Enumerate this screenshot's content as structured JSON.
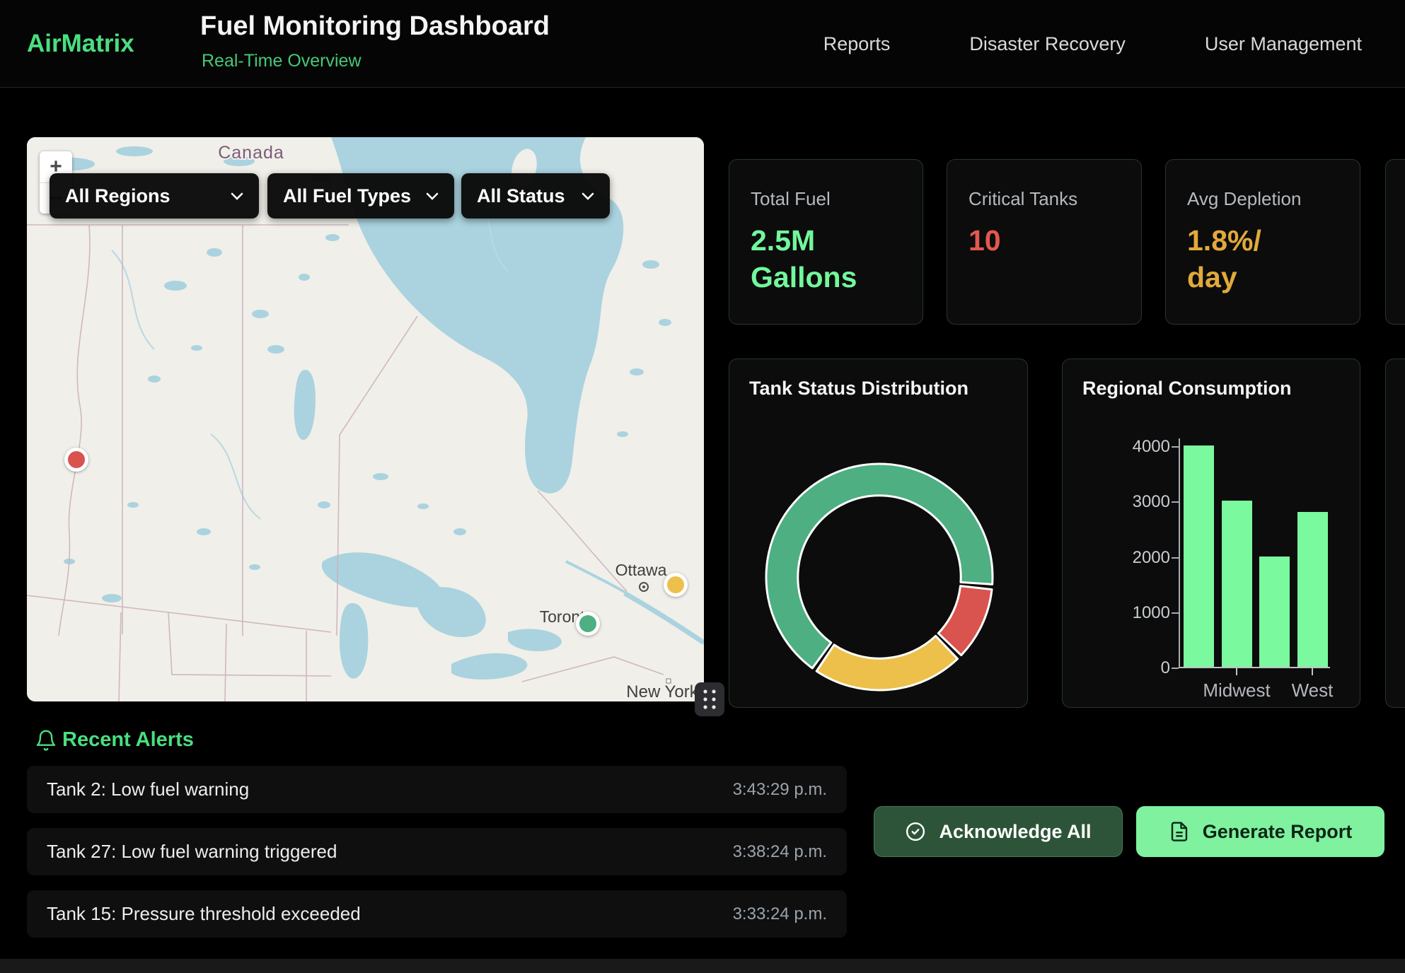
{
  "header": {
    "logo": "AirMatrix",
    "title": "Fuel Monitoring Dashboard",
    "subtitle": "Real-Time Overview",
    "nav": [
      {
        "label": "Reports"
      },
      {
        "label": "Disaster Recovery"
      },
      {
        "label": "User Management"
      }
    ]
  },
  "map": {
    "filters": [
      {
        "value": "All Regions"
      },
      {
        "value": "All Fuel Types"
      },
      {
        "value": "All Status"
      }
    ],
    "zoom_in": "+",
    "zoom_out": "−",
    "country_label": "Canada",
    "cities": [
      "Ottawa",
      "Toronto",
      "New York"
    ],
    "markers": [
      {
        "status": "critical",
        "color": "#d9534f",
        "x": 7.3,
        "y": 57.1
      },
      {
        "status": "warning",
        "color": "#ecc04a",
        "x": 95.8,
        "y": 79.3
      },
      {
        "status": "normal",
        "color": "#4daf82",
        "x": 82.9,
        "y": 86.2
      }
    ]
  },
  "stats": [
    {
      "label": "Total Fuel",
      "value_lines": [
        "2.5M",
        "Gallons"
      ],
      "color": "#72f79c"
    },
    {
      "label": "Critical Tanks",
      "value_lines": [
        "10"
      ],
      "color": "#e4574f"
    },
    {
      "label": "Avg Depletion",
      "value_lines": [
        "1.8%/",
        "day"
      ],
      "color": "#e2a93b"
    }
  ],
  "chart_data": [
    {
      "type": "donut",
      "title": "Tank Status Distribution",
      "segments": [
        {
          "name": "normal",
          "value": 60,
          "color": "#4daf82"
        },
        {
          "name": "critical",
          "value": 10,
          "color": "#d9544e"
        },
        {
          "name": "warning",
          "value": 20,
          "color": "#ecc04a"
        }
      ],
      "start_angle_deg": 215,
      "cutout_ratio": 0.72,
      "border_color": "#ffffff",
      "legend": "none"
    },
    {
      "type": "bar",
      "title": "Regional Consumption",
      "values": [
        4000,
        3000,
        2000,
        2800
      ],
      "x_tick_labels": [
        "",
        "Midwest",
        "",
        "West"
      ],
      "y_ticks": [
        0,
        1000,
        2000,
        3000,
        4000
      ],
      "ylim": [
        0,
        4000
      ],
      "bar_color": "#7bf99e",
      "grid": "off",
      "legend": "none"
    }
  ],
  "alerts": {
    "title": "Recent Alerts",
    "items": [
      {
        "text": "Tank 2: Low fuel warning",
        "time": "3:43:29 p.m."
      },
      {
        "text": "Tank 27: Low fuel warning triggered",
        "time": "3:38:24 p.m."
      },
      {
        "text": "Tank 15: Pressure threshold exceeded",
        "time": "3:33:24 p.m."
      }
    ]
  },
  "actions": {
    "acknowledge": "Acknowledge All",
    "generate": "Generate Report"
  },
  "colors": {
    "accent_green": "#4ade80",
    "bright_green": "#72f79c",
    "button_light_green": "#7ff19f",
    "button_dark_green": "#2d5438",
    "critical_red": "#e4574f",
    "warning_gold": "#e2a93b",
    "map_water": "#aad3df",
    "map_land": "#f1efe9"
  }
}
